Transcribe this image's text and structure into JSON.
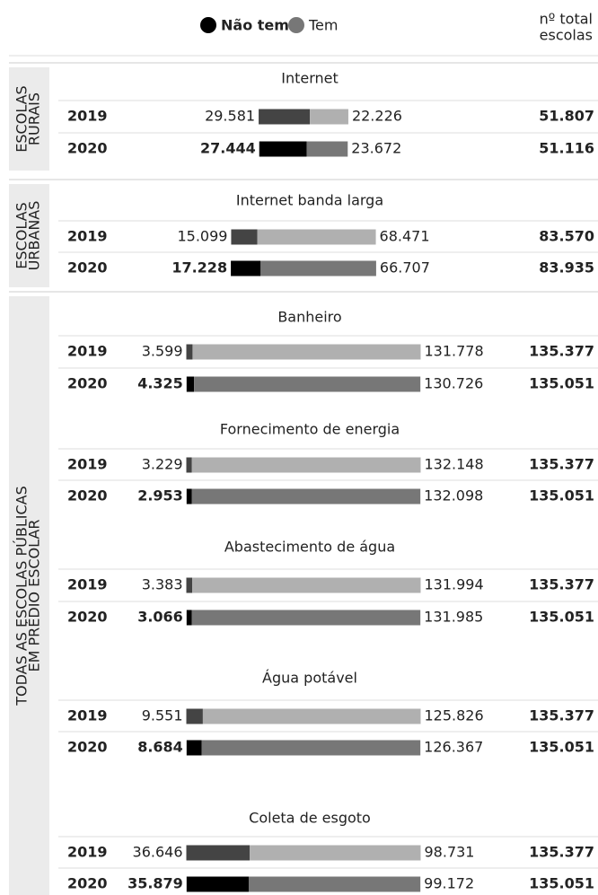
{
  "chart_data": {
    "type": "bar",
    "series": [
      {
        "name": "Não tem",
        "color": "#000000",
        "faded_color": "#444444"
      },
      {
        "name": "Tem",
        "color": "#777777",
        "faded_color": "#b0b0b0"
      }
    ],
    "total_header": [
      "nº total",
      "escolas"
    ],
    "sections": [
      {
        "label": [
          "ESCOLAS",
          "RURAIS"
        ],
        "groups": [
          {
            "title": "Internet",
            "rows": [
              {
                "year": "2019",
                "nao_tem": 29581,
                "nao_tem_label": "29.581",
                "tem": 22226,
                "tem_label": "22.226",
                "total": 51807,
                "total_label": "51.807"
              },
              {
                "year": "2020",
                "nao_tem": 27444,
                "nao_tem_label": "27.444",
                "tem": 23672,
                "tem_label": "23.672",
                "total": 51116,
                "total_label": "51.116"
              }
            ]
          }
        ]
      },
      {
        "label": [
          "ESCOLAS",
          "URBANAS"
        ],
        "groups": [
          {
            "title": "Internet banda larga",
            "rows": [
              {
                "year": "2019",
                "nao_tem": 15099,
                "nao_tem_label": "15.099",
                "tem": 68471,
                "tem_label": "68.471",
                "total": 83570,
                "total_label": "83.570"
              },
              {
                "year": "2020",
                "nao_tem": 17228,
                "nao_tem_label": "17.228",
                "tem": 66707,
                "tem_label": "66.707",
                "total": 83935,
                "total_label": "83.935"
              }
            ]
          }
        ]
      },
      {
        "label": [
          "TODAS AS ESCOLAS PÚBLICAS",
          "EM PRÉDIO ESCOLAR"
        ],
        "groups": [
          {
            "title": "Banheiro",
            "rows": [
              {
                "year": "2019",
                "nao_tem": 3599,
                "nao_tem_label": "3.599",
                "tem": 131778,
                "tem_label": "131.778",
                "total": 135377,
                "total_label": "135.377"
              },
              {
                "year": "2020",
                "nao_tem": 4325,
                "nao_tem_label": "4.325",
                "tem": 130726,
                "tem_label": "130.726",
                "total": 135051,
                "total_label": "135.051"
              }
            ]
          },
          {
            "title": "Fornecimento de energia",
            "rows": [
              {
                "year": "2019",
                "nao_tem": 3229,
                "nao_tem_label": "3.229",
                "tem": 132148,
                "tem_label": "132.148",
                "total": 135377,
                "total_label": "135.377"
              },
              {
                "year": "2020",
                "nao_tem": 2953,
                "nao_tem_label": "2.953",
                "tem": 132098,
                "tem_label": "132.098",
                "total": 135051,
                "total_label": "135.051"
              }
            ]
          },
          {
            "title": "Abastecimento de água",
            "rows": [
              {
                "year": "2019",
                "nao_tem": 3383,
                "nao_tem_label": "3.383",
                "tem": 131994,
                "tem_label": "131.994",
                "total": 135377,
                "total_label": "135.377"
              },
              {
                "year": "2020",
                "nao_tem": 3066,
                "nao_tem_label": "3.066",
                "tem": 131985,
                "tem_label": "131.985",
                "total": 135051,
                "total_label": "135.051"
              }
            ]
          },
          {
            "title": "Água potável",
            "rows": [
              {
                "year": "2019",
                "nao_tem": 9551,
                "nao_tem_label": "9.551",
                "tem": 125826,
                "tem_label": "125.826",
                "total": 135377,
                "total_label": "135.377"
              },
              {
                "year": "2020",
                "nao_tem": 8684,
                "nao_tem_label": "8.684",
                "tem": 126367,
                "tem_label": "126.367",
                "total": 135051,
                "total_label": "135.051"
              }
            ]
          },
          {
            "title": "Coleta de esgoto",
            "rows": [
              {
                "year": "2019",
                "nao_tem": 36646,
                "nao_tem_label": "36.646",
                "tem": 98731,
                "tem_label": "98.731",
                "total": 135377,
                "total_label": "135.377"
              },
              {
                "year": "2020",
                "nao_tem": 35879,
                "nao_tem_label": "35.879",
                "tem": 99172,
                "tem_label": "99.172",
                "total": 135051,
                "total_label": "135.051"
              }
            ]
          }
        ]
      }
    ]
  }
}
